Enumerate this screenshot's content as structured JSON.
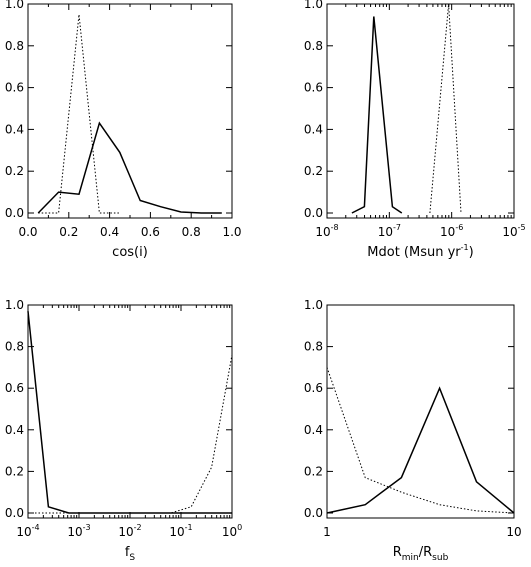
{
  "chart_data": [
    {
      "type": "line",
      "xlabel": "cos(i)",
      "x_scale": "linear",
      "xlim": [
        0,
        1
      ],
      "ylim": [
        0,
        1
      ],
      "x_ticks": [
        {
          "v": 0,
          "label": "0.0"
        },
        {
          "v": 0.2,
          "label": "0.2"
        },
        {
          "v": 0.4,
          "label": "0.4"
        },
        {
          "v": 0.6,
          "label": "0.6"
        },
        {
          "v": 0.8,
          "label": "0.8"
        },
        {
          "v": 1.0,
          "label": "1.0"
        }
      ],
      "y_ticks": [
        {
          "v": 0,
          "label": "0.0"
        },
        {
          "v": 0.2,
          "label": "0.2"
        },
        {
          "v": 0.4,
          "label": "0.4"
        },
        {
          "v": 0.6,
          "label": "0.6"
        },
        {
          "v": 0.8,
          "label": "0.8"
        },
        {
          "v": 1.0,
          "label": "1.0"
        }
      ],
      "series": [
        {
          "style": "solid",
          "x": [
            0.05,
            0.15,
            0.25,
            0.35,
            0.45,
            0.55,
            0.65,
            0.75,
            0.85,
            0.95
          ],
          "y": [
            0.0,
            0.1,
            0.09,
            0.43,
            0.29,
            0.06,
            0.03,
            0.005,
            0.0,
            0.0
          ]
        },
        {
          "style": "dotted",
          "x": [
            0.05,
            0.15,
            0.25,
            0.35,
            0.45
          ],
          "y": [
            0.0,
            0.0,
            0.95,
            0.0,
            0.0
          ]
        }
      ]
    },
    {
      "type": "line",
      "xlabel": "Mdot (Msun yr",
      "xlabel_exp": "-1",
      "xlabel_tail": ")",
      "x_scale": "log",
      "xlim": [
        -8,
        -5
      ],
      "ylim": [
        0,
        1
      ],
      "x_ticks": [
        {
          "v": -8,
          "base": "10",
          "exp": "-8"
        },
        {
          "v": -7,
          "base": "10",
          "exp": "-7"
        },
        {
          "v": -6,
          "base": "10",
          "exp": "-6"
        },
        {
          "v": -5,
          "base": "10",
          "exp": "-5"
        }
      ],
      "y_ticks": [
        {
          "v": 0,
          "label": "0.0"
        },
        {
          "v": 0.2,
          "label": "0.2"
        },
        {
          "v": 0.4,
          "label": "0.4"
        },
        {
          "v": 0.6,
          "label": "0.6"
        },
        {
          "v": 0.8,
          "label": "0.8"
        },
        {
          "v": 1.0,
          "label": "1.0"
        }
      ],
      "series": [
        {
          "style": "solid",
          "x": [
            -7.6,
            -7.4,
            -7.25,
            -6.95,
            -6.8
          ],
          "y": [
            0.0,
            0.03,
            0.94,
            0.03,
            0.0
          ]
        },
        {
          "style": "dotted",
          "x": [
            -6.35,
            -6.05,
            -5.85
          ],
          "y": [
            0.0,
            1.0,
            0.0
          ]
        }
      ]
    },
    {
      "type": "line",
      "xlabel": "f",
      "xlabel_sub": "S",
      "x_scale": "log",
      "xlim": [
        -4,
        0
      ],
      "ylim": [
        0,
        1
      ],
      "x_ticks": [
        {
          "v": -4,
          "base": "10",
          "exp": "-4"
        },
        {
          "v": -3,
          "base": "10",
          "exp": "-3"
        },
        {
          "v": -2,
          "base": "10",
          "exp": "-2"
        },
        {
          "v": -1,
          "base": "10",
          "exp": "-1"
        },
        {
          "v": 0,
          "base": "10",
          "exp": "0"
        }
      ],
      "y_ticks": [
        {
          "v": 0,
          "label": "0.0"
        },
        {
          "v": 0.2,
          "label": "0.2"
        },
        {
          "v": 0.4,
          "label": "0.4"
        },
        {
          "v": 0.6,
          "label": "0.6"
        },
        {
          "v": 0.8,
          "label": "0.8"
        },
        {
          "v": 1.0,
          "label": "1.0"
        }
      ],
      "series": [
        {
          "style": "solid",
          "x": [
            -4.0,
            -3.6,
            -3.2,
            -2.8,
            -2.4,
            -2.0,
            -1.6,
            -1.2,
            -0.8,
            -0.4,
            0.0
          ],
          "y": [
            0.97,
            0.03,
            0.0,
            0.0,
            0.0,
            0.0,
            0.0,
            0.0,
            0.0,
            0.0,
            0.0
          ]
        },
        {
          "style": "dotted",
          "x": [
            -4.0,
            -2.0,
            -1.2,
            -0.8,
            -0.4,
            0.0
          ],
          "y": [
            0.0,
            0.0,
            0.0,
            0.03,
            0.22,
            0.76
          ]
        }
      ]
    },
    {
      "type": "line",
      "xlabel": "R",
      "xlabel_sub1": "min",
      "xlabel_mid": "/R",
      "xlabel_sub2": "sub",
      "x_scale": "log",
      "xlim": [
        1,
        10
      ],
      "ylim": [
        0,
        1
      ],
      "x_ticks": [
        {
          "v": 1,
          "label": "1"
        },
        {
          "v": 10,
          "label": "10"
        }
      ],
      "y_ticks": [
        {
          "v": 0,
          "label": "0.0"
        },
        {
          "v": 0.2,
          "label": "0.2"
        },
        {
          "v": 0.4,
          "label": "0.4"
        },
        {
          "v": 0.6,
          "label": "0.6"
        },
        {
          "v": 0.8,
          "label": "0.8"
        },
        {
          "v": 1.0,
          "label": "1.0"
        }
      ],
      "series": [
        {
          "style": "solid",
          "x": [
            1.0,
            1.6,
            2.5,
            4.0,
            6.3,
            10.0
          ],
          "y": [
            0.0,
            0.04,
            0.17,
            0.6,
            0.15,
            0.0
          ]
        },
        {
          "style": "dotted",
          "x": [
            1.0,
            1.6,
            2.5,
            4.0,
            6.3,
            10.0
          ],
          "y": [
            0.7,
            0.17,
            0.1,
            0.04,
            0.01,
            0.0
          ]
        }
      ]
    }
  ]
}
